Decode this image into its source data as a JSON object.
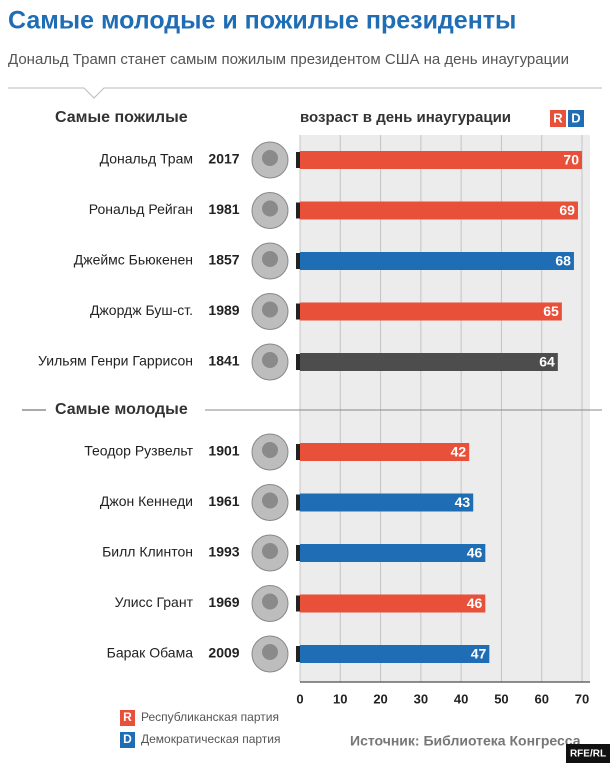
{
  "chart_data": {
    "type": "bar",
    "title": "Самые молодые и пожилые президенты",
    "subtitle": "Дональд Трамп станет самым пожилым президентом США на день инаугурации",
    "x_label": "возраст в день инаугурации",
    "groups": [
      {
        "name": "Самые пожилые",
        "categories": [
          "Дональд Трам",
          "Рональд Рейган",
          "Джеймс Бьюкенен",
          "Джордж Буш-ст.",
          "Уильям Генри Гаррисон"
        ],
        "years": [
          2017,
          1981,
          1857,
          1989,
          1841
        ],
        "values": [
          70,
          69,
          68,
          65,
          64
        ],
        "parties": [
          "R",
          "R",
          "D",
          "R",
          null
        ]
      },
      {
        "name": "Самые молодые",
        "categories": [
          "Теодор Рузвельт",
          "Джон Кеннеди",
          "Билл Клинтон",
          "Улисс Грант",
          "Барак Обама"
        ],
        "years": [
          1901,
          1961,
          1993,
          1969,
          2009
        ],
        "values": [
          42,
          43,
          46,
          46,
          47
        ],
        "parties": [
          "R",
          "D",
          "D",
          "R",
          "D"
        ]
      }
    ],
    "parties": [
      {
        "key": "R",
        "name": "Республиканская партия",
        "color": "#e8503a"
      },
      {
        "key": "D",
        "name": "Демократическая партия",
        "color": "#1f6db5"
      }
    ],
    "other_color": "#4d4d4d",
    "xlim": [
      0,
      70
    ],
    "xticks": [
      0,
      10,
      20,
      30,
      40,
      50,
      60,
      70
    ],
    "grid": true,
    "source": "Источник: Библиотека Конгресса",
    "credit": "RFE/RL"
  }
}
